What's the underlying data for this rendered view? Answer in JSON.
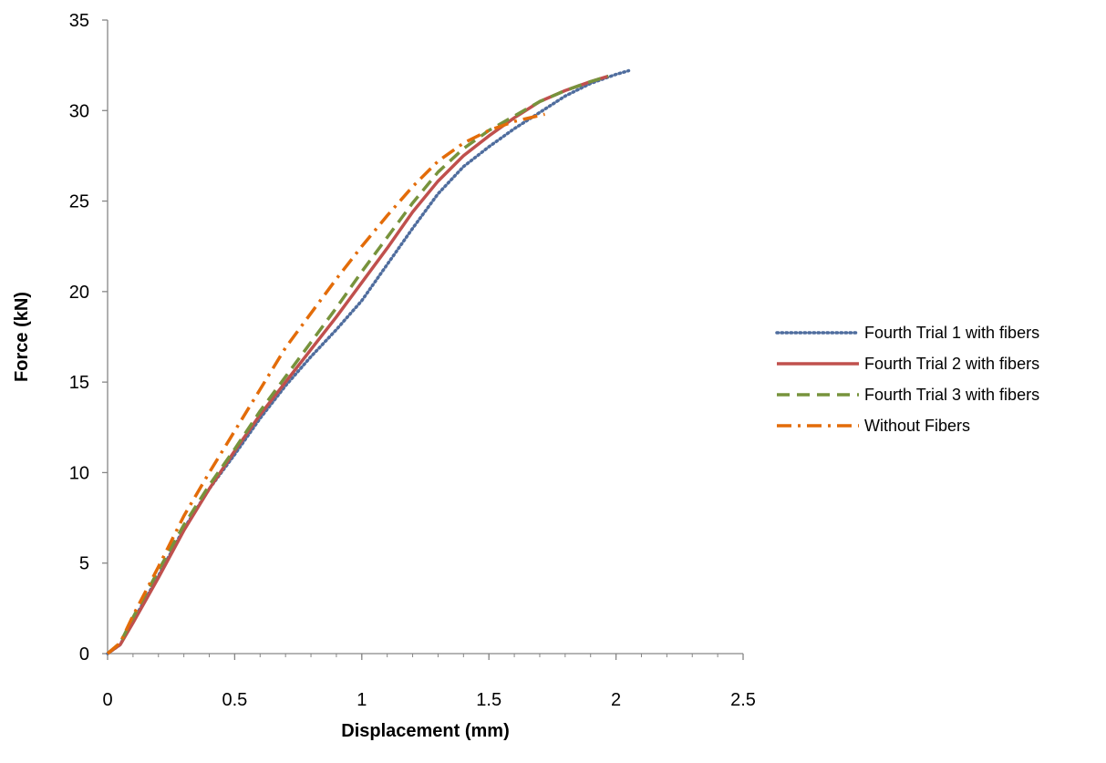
{
  "chart_data": {
    "type": "line",
    "title": "",
    "xlabel": "Displacement (mm)",
    "ylabel": "Force (kN)",
    "xlim": [
      0,
      2.5
    ],
    "ylim": [
      0,
      35
    ],
    "x_ticks": [
      0,
      0.5,
      1,
      1.5,
      2,
      2.5
    ],
    "x_tick_labels": [
      "0",
      "0.5",
      "1",
      "1.5",
      "2",
      "2.5"
    ],
    "y_ticks": [
      0,
      5,
      10,
      15,
      20,
      25,
      30,
      35
    ],
    "y_tick_labels": [
      "0",
      "5",
      "10",
      "15",
      "20",
      "25",
      "30",
      "35"
    ],
    "grid": false,
    "legend_position": "right",
    "series": [
      {
        "name": "Fourth Trial 1 with fibers",
        "color": "#4f6d9e",
        "style": "dotted",
        "x": [
          0,
          0.05,
          0.1,
          0.2,
          0.3,
          0.4,
          0.5,
          0.6,
          0.7,
          0.8,
          0.9,
          1.0,
          1.1,
          1.2,
          1.3,
          1.4,
          1.5,
          1.6,
          1.7,
          1.8,
          1.9,
          2.0,
          2.05
        ],
        "y": [
          0,
          0.5,
          1.8,
          4.3,
          6.9,
          9.1,
          11.0,
          13.0,
          14.8,
          16.4,
          17.9,
          19.5,
          21.5,
          23.5,
          25.4,
          26.9,
          28.0,
          29.0,
          29.9,
          30.8,
          31.5,
          32.0,
          32.2
        ]
      },
      {
        "name": "Fourth Trial 2 with fibers",
        "color": "#c0504d",
        "style": "solid",
        "x": [
          0,
          0.05,
          0.1,
          0.2,
          0.3,
          0.4,
          0.5,
          0.6,
          0.7,
          0.8,
          0.9,
          1.0,
          1.1,
          1.2,
          1.3,
          1.4,
          1.5,
          1.6,
          1.7,
          1.8,
          1.9,
          1.97
        ],
        "y": [
          0,
          0.5,
          1.7,
          4.2,
          6.8,
          9.1,
          11.2,
          13.2,
          15.0,
          16.8,
          18.6,
          20.5,
          22.4,
          24.4,
          26.1,
          27.5,
          28.6,
          29.6,
          30.5,
          31.1,
          31.6,
          31.9
        ]
      },
      {
        "name": "Fourth Trial 3 with fibers",
        "color": "#77933c",
        "style": "dashed",
        "x": [
          0,
          0.05,
          0.1,
          0.2,
          0.3,
          0.4,
          0.5,
          0.6,
          0.7,
          0.8,
          0.9,
          1.0,
          1.1,
          1.2,
          1.3,
          1.4,
          1.5,
          1.6,
          1.7,
          1.8,
          1.9,
          1.97
        ],
        "y": [
          0,
          0.6,
          2.0,
          4.6,
          7.1,
          9.3,
          11.3,
          13.4,
          15.3,
          17.2,
          19.1,
          21.1,
          23.0,
          24.9,
          26.6,
          27.9,
          28.9,
          29.7,
          30.5,
          31.1,
          31.6,
          31.9
        ]
      },
      {
        "name": "Without Fibers",
        "color": "#e36c09",
        "style": "dashdot",
        "x": [
          0,
          0.05,
          0.1,
          0.2,
          0.3,
          0.4,
          0.5,
          0.6,
          0.7,
          0.8,
          0.9,
          1.0,
          1.1,
          1.2,
          1.3,
          1.4,
          1.5,
          1.6,
          1.72
        ],
        "y": [
          0,
          0.6,
          2.1,
          4.8,
          7.6,
          10.0,
          12.3,
          14.6,
          16.9,
          18.8,
          20.7,
          22.5,
          24.2,
          25.8,
          27.2,
          28.2,
          28.9,
          29.4,
          29.8
        ]
      }
    ]
  }
}
